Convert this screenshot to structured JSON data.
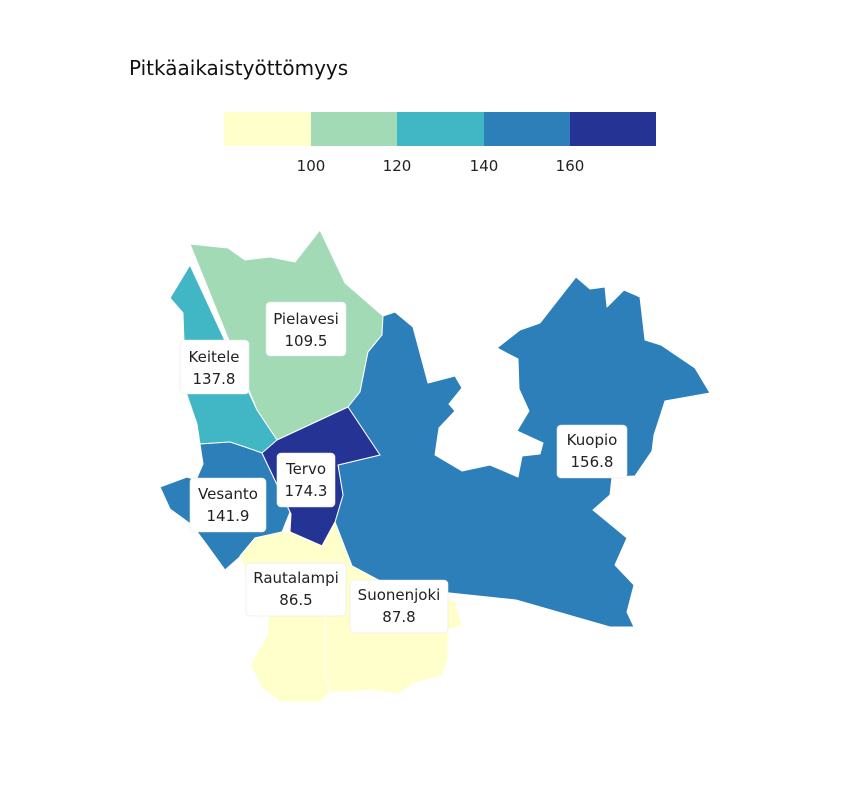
{
  "title": "Pitkäaikaistyöttömyys",
  "legend": {
    "colors": [
      "#ffffcc",
      "#a1dab4",
      "#41b6c4",
      "#2c7fb8",
      "#253494"
    ],
    "ticks": [
      "100",
      "120",
      "140",
      "160"
    ]
  },
  "regions": [
    {
      "name": "Pielavesi",
      "value": "109.5"
    },
    {
      "name": "Keitele",
      "value": "137.8"
    },
    {
      "name": "Tervo",
      "value": "174.3"
    },
    {
      "name": "Vesanto",
      "value": "141.9"
    },
    {
      "name": "Kuopio",
      "value": "156.8"
    },
    {
      "name": "Rautalampi",
      "value": "86.5"
    },
    {
      "name": "Suonenjoki",
      "value": "87.8"
    }
  ]
}
